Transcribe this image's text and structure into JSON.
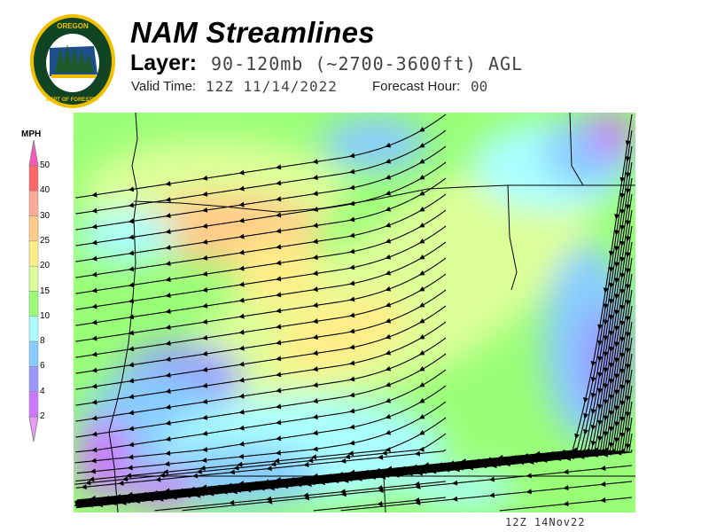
{
  "header": {
    "logo_text": [
      "OREGON",
      "DEPARTMENT OF FORESTRY"
    ],
    "title": "NAM Streamlines",
    "layer_label": "Layer:",
    "layer_value": "90-120mb (~2700-3600ft) AGL",
    "valid_time_label": "Valid Time:",
    "valid_time_value": "12Z 11/14/2022",
    "forecast_hour_label": "Forecast Hour:",
    "forecast_hour_value": "00"
  },
  "legend": {
    "unit": "MPH",
    "labels": [
      "50",
      "40",
      "30",
      "25",
      "20",
      "15",
      "10",
      "8",
      "6",
      "4",
      "2"
    ],
    "colors": {
      "above_50": "#ff55bb",
      "40_50": "#ff6666",
      "30_40": "#ffaa99",
      "25_30": "#ffcc88",
      "20_25": "#ffee88",
      "15_20": "#ddff99",
      "10_15": "#99ff77",
      "8_10": "#aaffff",
      "6_8": "#88ccff",
      "4_6": "#9999ff",
      "2_4": "#cc77ff",
      "below_2": "#ee99ff"
    }
  },
  "map": {
    "layer": "wind streamlines over wind speed fill",
    "timestamp": "12Z 14Nov22"
  }
}
